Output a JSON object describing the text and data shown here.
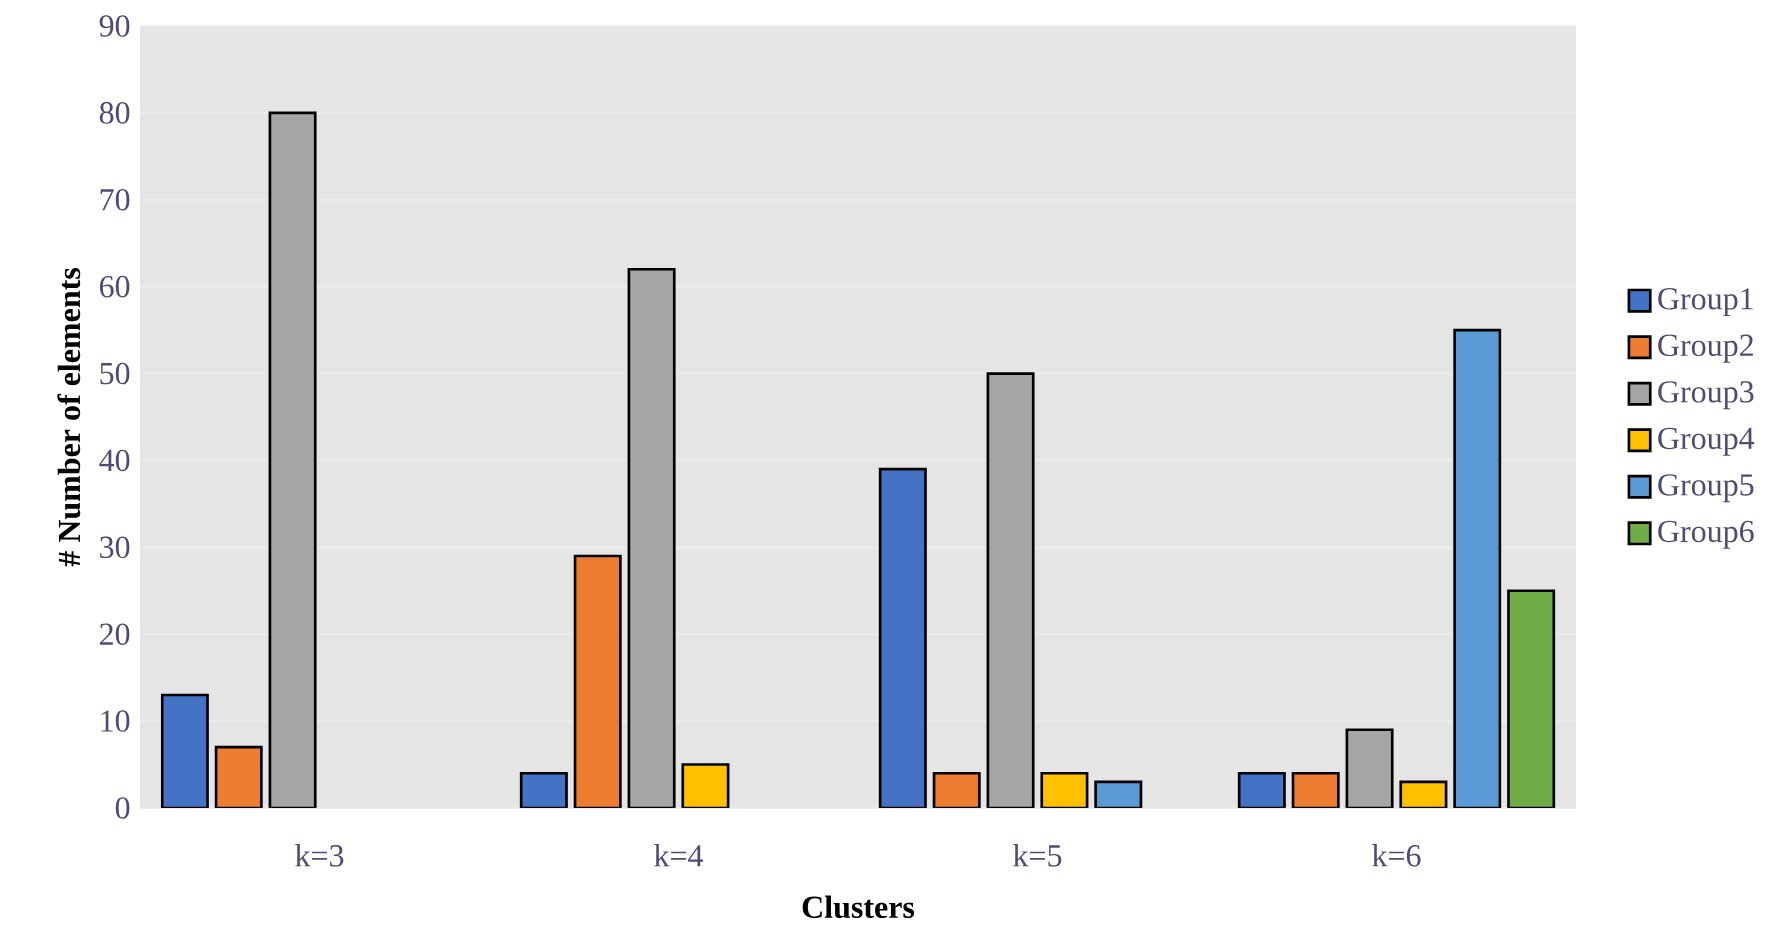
{
  "chart_data": {
    "type": "bar",
    "xlabel": "Clusters",
    "ylabel": "# Number of elements",
    "categories": [
      "k=3",
      "k=4",
      "k=5",
      "k=6"
    ],
    "series": [
      {
        "name": "Group1",
        "color": "#4472c4",
        "values": [
          13,
          4,
          39,
          4
        ]
      },
      {
        "name": "Group2",
        "color": "#ed7d31",
        "values": [
          7,
          29,
          4,
          4
        ]
      },
      {
        "name": "Group3",
        "color": "#a5a5a5",
        "values": [
          80,
          62,
          50,
          9
        ]
      },
      {
        "name": "Group4",
        "color": "#ffc000",
        "values": [
          null,
          5,
          4,
          3
        ]
      },
      {
        "name": "Group5",
        "color": "#5b9bd5",
        "values": [
          null,
          null,
          3,
          55
        ]
      },
      {
        "name": "Group6",
        "color": "#70ad47",
        "values": [
          null,
          null,
          null,
          25
        ]
      }
    ],
    "ylim": [
      0,
      90
    ],
    "yticks": [
      0,
      10,
      20,
      30,
      40,
      50,
      60,
      70,
      80,
      90
    ],
    "grid": "y",
    "legend": "right"
  }
}
